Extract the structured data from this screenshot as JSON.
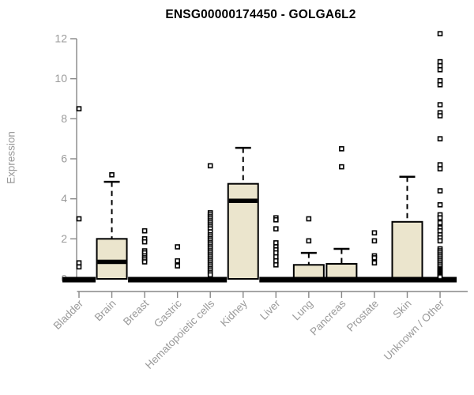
{
  "title": "ENSG00000174450 - GOLGA6L2",
  "colors": {
    "box_fill": "#ebe5cd",
    "box_border": "#000000",
    "axis": "#878787",
    "tick_label": "#9a9a9a",
    "title": "#000000",
    "background": "#ffffff"
  },
  "chart_data": {
    "type": "boxplot",
    "title": "ENSG00000174450 - GOLGA6L2",
    "xlabel": "",
    "ylabel": "Expression",
    "ylim": [
      0,
      12
    ],
    "yticks": [
      0,
      2,
      4,
      6,
      8,
      10,
      12
    ],
    "grid": false,
    "legend": "none",
    "categories": [
      "Bladder",
      "Brain",
      "Breast",
      "Gastric",
      "Hematopoietic cells",
      "Kidney",
      "Liver",
      "Lung",
      "Pancreas",
      "Prostate",
      "Skin",
      "Unknown / Other"
    ],
    "boxes": [
      {
        "label": "Bladder",
        "q1": 0,
        "median": 0,
        "q3": 0,
        "whisker_low": 0,
        "whisker_high": 0,
        "outliers": [
          8.5,
          3.0,
          0.8,
          0.6
        ]
      },
      {
        "label": "Brain",
        "q1": 0,
        "median": 0.85,
        "q3": 2.0,
        "whisker_low": 0,
        "whisker_high": 4.85,
        "outliers": [
          5.2
        ]
      },
      {
        "label": "Breast",
        "q1": 0,
        "median": 0,
        "q3": 0,
        "whisker_low": 0,
        "whisker_high": 0,
        "outliers": [
          2.4,
          2.0,
          1.85,
          1.4,
          1.3,
          1.15,
          1.05,
          0.95,
          0.85
        ]
      },
      {
        "label": "Gastric",
        "q1": 0,
        "median": 0,
        "q3": 0,
        "whisker_low": 0,
        "whisker_high": 0,
        "outliers": [
          1.6,
          0.9,
          0.65
        ]
      },
      {
        "label": "Hematopoietic cells",
        "q1": 0,
        "median": 0,
        "q3": 0,
        "whisker_low": 0,
        "whisker_high": 0,
        "outliers": [
          5.65,
          3.3,
          3.2,
          3.1,
          3.0,
          2.9,
          2.8,
          2.7,
          2.6,
          2.5,
          2.35,
          2.2,
          2.1,
          2.0,
          1.9,
          1.8,
          1.7,
          1.6,
          1.5,
          1.4,
          1.3,
          1.2,
          1.1,
          1.0,
          0.9,
          0.8,
          0.7,
          0.6,
          0.5,
          0.4,
          0.3,
          0.2
        ]
      },
      {
        "label": "Kidney",
        "q1": 0,
        "median": 3.9,
        "q3": 4.75,
        "whisker_low": 0,
        "whisker_high": 6.55,
        "outliers": []
      },
      {
        "label": "Liver",
        "q1": 0,
        "median": 0,
        "q3": 0,
        "whisker_low": 0,
        "whisker_high": 0,
        "outliers": [
          3.05,
          2.95,
          2.5,
          1.8,
          1.6,
          1.45,
          1.3,
          1.1,
          0.9,
          0.7
        ]
      },
      {
        "label": "Lung",
        "q1": 0,
        "median": 0,
        "q3": 0.7,
        "whisker_low": 0,
        "whisker_high": 1.3,
        "outliers": [
          3.0,
          1.9
        ]
      },
      {
        "label": "Pancreas",
        "q1": 0,
        "median": 0,
        "q3": 0.75,
        "whisker_low": 0,
        "whisker_high": 1.5,
        "outliers": [
          6.5,
          5.6
        ]
      },
      {
        "label": "Prostate",
        "q1": 0,
        "median": 0,
        "q3": 0,
        "whisker_low": 0,
        "whisker_high": 0,
        "outliers": [
          2.3,
          1.9,
          1.15,
          1.05,
          0.8
        ]
      },
      {
        "label": "Skin",
        "q1": 0,
        "median": 0,
        "q3": 2.85,
        "whisker_low": 0,
        "whisker_high": 5.1,
        "outliers": []
      },
      {
        "label": "Unknown / Other",
        "q1": 0,
        "median": 0,
        "q3": 0,
        "whisker_low": 0,
        "whisker_high": 0,
        "outliers": [
          12.25,
          10.85,
          10.65,
          10.45,
          9.9,
          9.7,
          8.7,
          8.3,
          8.15,
          7.0,
          5.7,
          5.5,
          4.4,
          3.7,
          3.2,
          3.05,
          2.8,
          2.55,
          2.4,
          2.2,
          2.05,
          1.9,
          1.5,
          1.4,
          1.3,
          1.2,
          1.1,
          1.0,
          0.9,
          0.8,
          0.7,
          0.6,
          0.5,
          0.45,
          0.4,
          0.35,
          0.3,
          0.25,
          0.2,
          0.15,
          0.1
        ]
      }
    ]
  }
}
